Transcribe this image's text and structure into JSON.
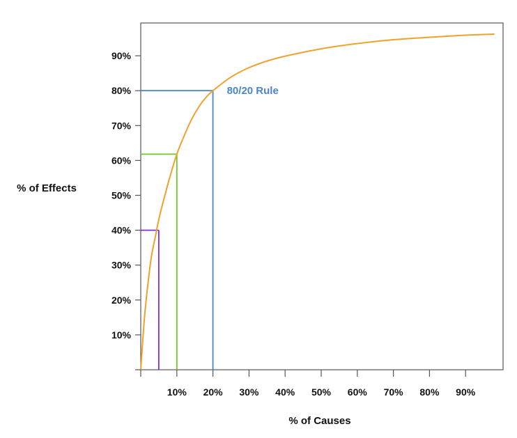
{
  "chart_data": {
    "type": "line",
    "title": "",
    "xlabel": "% of Causes",
    "ylabel": "% of Effects",
    "xlim": [
      0,
      100
    ],
    "ylim": [
      0,
      100
    ],
    "x_ticks": [
      10,
      20,
      30,
      40,
      50,
      60,
      70,
      80,
      90
    ],
    "y_ticks": [
      10,
      20,
      30,
      40,
      50,
      60,
      70,
      80,
      90
    ],
    "x_tick_labels": [
      "10%",
      "20%",
      "30%",
      "40%",
      "50%",
      "60%",
      "70%",
      "80%",
      "90%"
    ],
    "y_tick_labels": [
      "10%",
      "20%",
      "30%",
      "40%",
      "50%",
      "60%",
      "70%",
      "80%",
      "90%"
    ],
    "grid": false,
    "series": [
      {
        "color": "#f0a12b",
        "x": [
          0,
          1,
          2,
          3,
          4,
          5,
          6,
          8,
          10,
          12,
          14,
          16,
          18,
          20,
          25,
          30,
          35,
          40,
          50,
          60,
          70,
          80,
          90,
          98
        ],
        "y": [
          0,
          14.5,
          24.7,
          32.7,
          37.9,
          43.1,
          47.3,
          55.0,
          61.8,
          67.0,
          71.6,
          75.2,
          78.0,
          80.0,
          83.9,
          86.6,
          88.5,
          89.9,
          92.0,
          93.5,
          94.6,
          95.3,
          95.9,
          96.2
        ]
      }
    ],
    "annotations": [
      {
        "x": 5,
        "y": 40,
        "color": "#8a2bd8"
      },
      {
        "x": 10,
        "y": 61.8,
        "color": "#6fc52a"
      },
      {
        "x": 20,
        "y": 80,
        "color": "#4a86c8",
        "label": "80/20 Rule"
      }
    ],
    "colors": {
      "axis": "#555555",
      "text": "#111111"
    }
  }
}
